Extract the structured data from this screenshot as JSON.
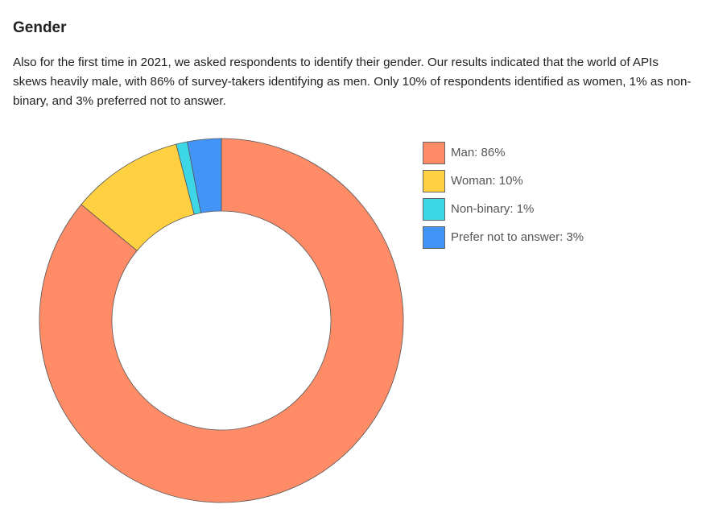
{
  "section": {
    "title": "Gender",
    "intro": "Also for the first time in 2021, we asked respondents to identify their gender. Our results indicated that the world of APIs skews heavily male, with 86% of survey-takers identifying as men. Only 10% of respondents identified as women, 1% as non-binary, and 3% preferred not to answer."
  },
  "chart_data": {
    "type": "pie",
    "variant": "donut",
    "categories": [
      "Man",
      "Woman",
      "Non-binary",
      "Prefer not to answer"
    ],
    "values": [
      86,
      10,
      1,
      3
    ],
    "colors": [
      "#FF8C66",
      "#FFD042",
      "#3DD6E6",
      "#4294F7"
    ],
    "legend_labels": [
      "Man: 86%",
      "Woman: 10%",
      "Non-binary: 1%",
      "Prefer not to answer: 3%"
    ],
    "legend_position": "right",
    "title": ""
  }
}
